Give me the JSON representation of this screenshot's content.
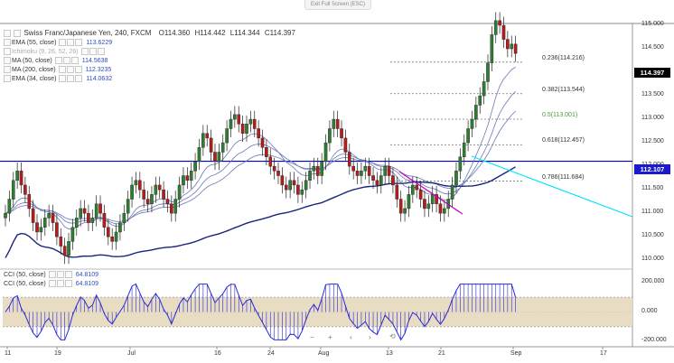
{
  "window": {
    "exit_label": "Exit Full Screen (ESC)"
  },
  "header": {
    "title": "Swiss Franc/Japanese Yen, 240, FXCM",
    "open": "O114.360",
    "high": "H114.442",
    "low": "L114.344",
    "close": "C114.397"
  },
  "indicators": [
    {
      "name": "EMA (55, close)",
      "value": "113.6229",
      "muted": false
    },
    {
      "name": "Ichimoku (9, 26, 52, 26)",
      "value": "",
      "muted": true
    },
    {
      "name": "MA (50, close)",
      "value": "114.5638",
      "muted": false
    },
    {
      "name": "MA (200, close)",
      "value": "112.3235",
      "muted": false
    },
    {
      "name": "EMA (34, close)",
      "value": "114.0632",
      "muted": false
    }
  ],
  "cci_panel": {
    "legend": [
      {
        "name": "CCI (50, close)",
        "value": "64.8109"
      },
      {
        "name": "CCI (50, close)",
        "value": "64.8109"
      }
    ]
  },
  "price_axis": {
    "labels": [
      "115.000",
      "114.500",
      "114.000",
      "113.500",
      "113.000",
      "112.500",
      "112.000",
      "111.500",
      "111.000",
      "110.500",
      "110.000"
    ],
    "current_price": "114.397",
    "line_price": "112.107"
  },
  "cci_axis": {
    "labels": [
      "200.000",
      "0.000",
      "-200.000"
    ]
  },
  "time_axis": {
    "labels": [
      "11",
      "19",
      "Jul",
      "16",
      "24",
      "Aug",
      "13",
      "21",
      "Sep",
      "17"
    ]
  },
  "fib_levels": [
    {
      "label": "0.236(114.216)",
      "color": "#333333"
    },
    {
      "label": "0.382(113.544)",
      "color": "#333333"
    },
    {
      "label": "0.5(113.001)",
      "color": "#4c9a3a"
    },
    {
      "label": "0.618(112.457)",
      "color": "#333333"
    },
    {
      "label": "0.786(111.684)",
      "color": "#333333"
    }
  ],
  "controls": {
    "minus": "−",
    "plus": "+",
    "back": "⟲"
  },
  "colors": {
    "up_candle": "#2e7d32",
    "down_candle": "#b71c1c",
    "ema55": "#6b79b5",
    "ma200": "#1a237e",
    "horizontal_line": "#0000cc",
    "cyan_trend": "#00e5ff",
    "magenta_trend": "#c000c0",
    "cci_line": "#2a2ad8",
    "cci_band": "#e8dcc3",
    "price_badge": "#000000",
    "line_badge": "#1a1acc"
  },
  "chart_data": {
    "type": "candlestick",
    "title": "Swiss Franc/Japanese Yen, 240, FXCM",
    "price_range": [
      109.85,
      115.25
    ],
    "closes": [
      111.0,
      111.3,
      111.7,
      111.9,
      111.6,
      111.4,
      111.1,
      110.8,
      110.6,
      110.7,
      110.9,
      111.0,
      110.8,
      110.5,
      110.3,
      110.1,
      110.4,
      110.7,
      110.9,
      111.1,
      111.0,
      110.8,
      110.9,
      111.2,
      111.0,
      110.7,
      110.5,
      110.4,
      110.6,
      110.8,
      111.0,
      111.3,
      111.6,
      111.7,
      111.5,
      111.3,
      111.2,
      111.4,
      111.6,
      111.5,
      111.3,
      111.2,
      111.0,
      111.3,
      111.6,
      111.8,
      111.7,
      111.9,
      112.1,
      112.4,
      112.7,
      112.6,
      112.3,
      112.1,
      112.3,
      112.5,
      112.8,
      113.0,
      113.1,
      112.9,
      112.7,
      112.9,
      113.0,
      112.8,
      112.6,
      112.4,
      112.2,
      112.0,
      111.9,
      111.8,
      111.6,
      111.5,
      111.7,
      111.6,
      111.4,
      111.5,
      111.7,
      111.9,
      112.0,
      111.8,
      112.1,
      112.5,
      112.8,
      113.0,
      112.8,
      112.6,
      112.3,
      112.0,
      111.9,
      111.8,
      111.9,
      112.0,
      111.8,
      111.7,
      111.6,
      111.8,
      112.0,
      111.8,
      111.6,
      111.3,
      111.0,
      111.1,
      111.4,
      111.6,
      111.5,
      111.3,
      111.1,
      111.2,
      111.4,
      111.2,
      111.0,
      111.1,
      111.3,
      111.6,
      111.9,
      112.2,
      112.5,
      112.8,
      113.0,
      113.3,
      113.5,
      113.8,
      114.2,
      114.8,
      115.1,
      115.0,
      114.7,
      114.5,
      114.6,
      114.4
    ]
  }
}
